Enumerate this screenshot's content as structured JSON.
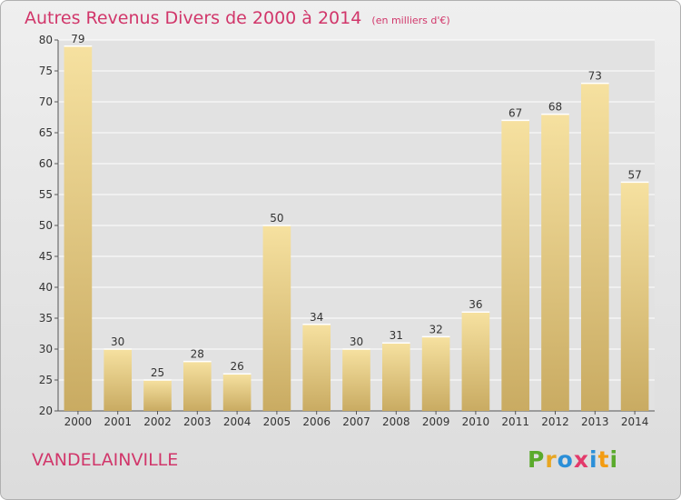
{
  "chart_data": {
    "type": "bar",
    "title": "Autres Revenus Divers de 2000 à 2014",
    "unit_label": "(en milliers d'€)",
    "categories": [
      "2000",
      "2001",
      "2002",
      "2003",
      "2004",
      "2005",
      "2006",
      "2007",
      "2008",
      "2009",
      "2010",
      "2011",
      "2012",
      "2013",
      "2014"
    ],
    "values": [
      79,
      30,
      25,
      28,
      26,
      50,
      34,
      30,
      31,
      32,
      36,
      67,
      68,
      73,
      57
    ],
    "ylim": [
      20,
      80
    ],
    "yticks": [
      20,
      25,
      30,
      35,
      40,
      45,
      50,
      55,
      60,
      65,
      70,
      75,
      80
    ],
    "grid": true,
    "bar_color_light": "#f6e1a0",
    "bar_color_dark": "#c9ab62"
  },
  "footer": {
    "town": "VANDELAINVILLE",
    "logo_text": "Proxiti",
    "logo_colors": [
      "#5aaa2c",
      "#e8a623",
      "#2b8fd8",
      "#e33a6b",
      "#2b8fd8",
      "#f39c12",
      "#5aaa2c"
    ]
  }
}
